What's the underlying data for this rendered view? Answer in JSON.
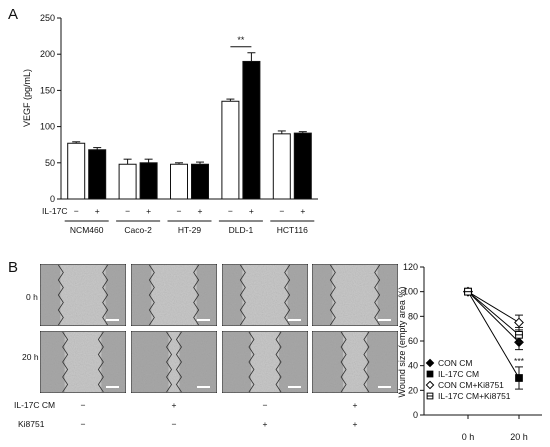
{
  "panels": {
    "a_letter": "A",
    "b_letter": "B"
  },
  "colors": {
    "control": "#ffffff",
    "il17c": "#000000",
    "micrograph_bg": "#c9c9c9",
    "micrograph_cells": "#8c8c8c",
    "scale_bar": "#ffffff"
  },
  "chart_data": [
    {
      "type": "bar",
      "panel": "A",
      "title": "",
      "ylabel": "VEGF (pg/mL)",
      "xlabel": "",
      "ylim": [
        0,
        250
      ],
      "yticks": [
        "0",
        "50",
        "100",
        "150",
        "200",
        "250"
      ],
      "categories": [
        "NCM460",
        "Caco-2",
        "HT-29",
        "DLD-1",
        "HCT116"
      ],
      "treatment_row_label": "IL-17C",
      "treatment_signs": [
        "−",
        "+"
      ],
      "significance": {
        "category": "DLD-1",
        "label": "**"
      },
      "series": [
        {
          "fill": "#ffffff",
          "values": [
            77,
            48,
            48,
            135,
            90
          ],
          "errors": [
            2,
            7,
            2,
            3,
            4
          ]
        },
        {
          "fill": "#000000",
          "values": [
            68,
            50,
            48,
            190,
            91
          ],
          "errors": [
            3,
            5,
            3,
            12,
            2
          ]
        }
      ]
    },
    {
      "type": "line",
      "panel": "B",
      "title": "",
      "ylabel": "Wound size (empty area %)",
      "xlabel": "",
      "x": [
        "0 h",
        "20 h"
      ],
      "ylim": [
        0,
        120
      ],
      "yticks": [
        "0",
        "20",
        "40",
        "60",
        "80",
        "100",
        "120"
      ],
      "significance": {
        "label": "***"
      },
      "series": [
        {
          "name": "CON CM",
          "marker": "filled-diamond",
          "values": [
            100,
            59
          ],
          "errors": [
            1,
            6
          ]
        },
        {
          "name": "IL-17C CM",
          "marker": "filled-square",
          "values": [
            100,
            30
          ],
          "errors": [
            1,
            9
          ]
        },
        {
          "name": "CON CM+Ki8751",
          "marker": "open-diamond",
          "values": [
            100,
            75
          ],
          "errors": [
            1,
            6
          ]
        },
        {
          "name": "IL-17C CM+Ki8751",
          "marker": "open-square",
          "values": [
            100,
            65
          ],
          "errors": [
            1,
            6
          ]
        }
      ]
    }
  ],
  "micrographs": {
    "row_labels": [
      "0 h",
      "20 h"
    ],
    "treatment_rows": [
      {
        "label": "IL-17C CM",
        "signs": [
          "−",
          "+",
          "−",
          "+"
        ]
      },
      {
        "label": "Ki8751",
        "signs": [
          "−",
          "−",
          "+",
          "+"
        ]
      }
    ]
  }
}
